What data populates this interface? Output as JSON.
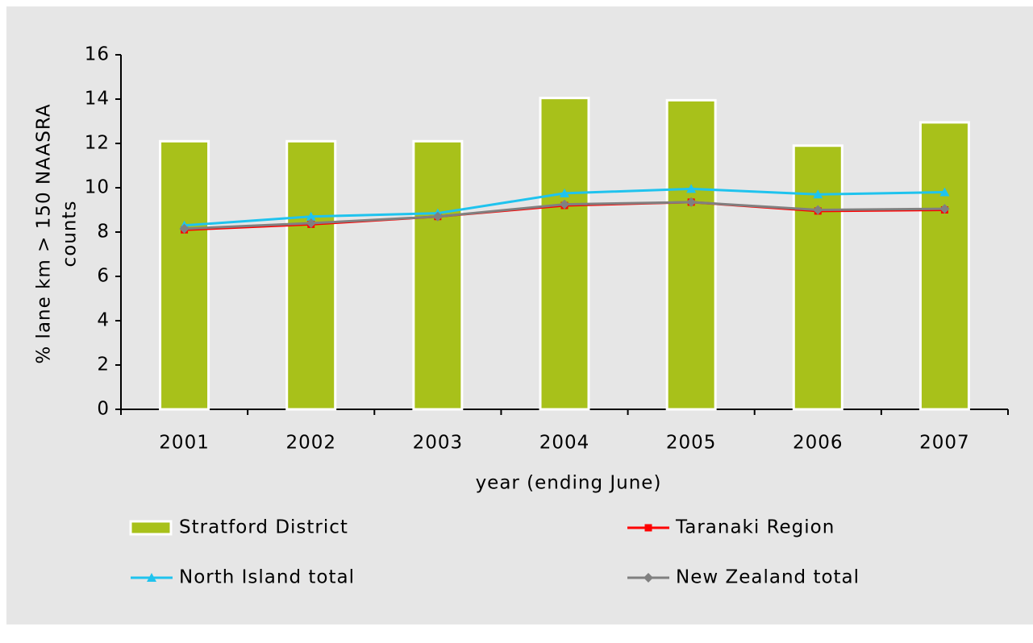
{
  "chart_data": {
    "type": "bar",
    "xlabel": "year (ending June)",
    "ylabel": [
      "% lane km > 150 NAASRA",
      "counts"
    ],
    "categories": [
      "2001",
      "2002",
      "2003",
      "2004",
      "2005",
      "2006",
      "2007"
    ],
    "ylim": [
      0,
      16
    ],
    "yticks": [
      0,
      2,
      4,
      6,
      8,
      10,
      12,
      14,
      16
    ],
    "grid": false,
    "series": [
      {
        "name": "Stratford District",
        "type": "bar",
        "color": "#a8c11a",
        "values": [
          12.1,
          12.1,
          12.1,
          14.05,
          13.95,
          11.9,
          12.95
        ]
      },
      {
        "name": "Taranaki Region",
        "type": "line",
        "marker": "square",
        "color": "#ff0000",
        "values": [
          8.1,
          8.35,
          8.7,
          9.2,
          9.35,
          8.95,
          9.0
        ]
      },
      {
        "name": "North Island total",
        "type": "line",
        "marker": "triangle",
        "color": "#1fc3ee",
        "values": [
          8.3,
          8.7,
          8.85,
          9.75,
          9.95,
          9.7,
          9.8
        ]
      },
      {
        "name": "New Zealand total",
        "type": "line",
        "marker": "diamond",
        "color": "#808080",
        "values": [
          8.15,
          8.4,
          8.7,
          9.25,
          9.35,
          9.0,
          9.05
        ]
      }
    ]
  }
}
